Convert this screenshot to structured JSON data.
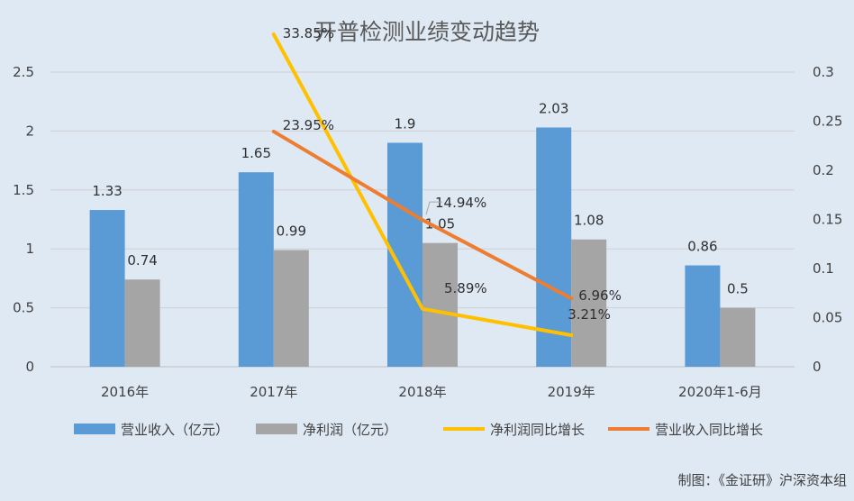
{
  "chart_data": {
    "type": "bar",
    "title": "开普检测业绩变动趋势",
    "categories": [
      "2016年",
      "2017年",
      "2018年",
      "2019年",
      "2020年1-6月"
    ],
    "y_left_ticks": [
      "0",
      "0.5",
      "1",
      "1.5",
      "2",
      "2.5"
    ],
    "y_right_ticks": [
      "0",
      "0.05",
      "0.1",
      "0.15",
      "0.2",
      "0.25",
      "0.3"
    ],
    "ylim_left": [
      0,
      2.5
    ],
    "ylim_right": [
      0,
      0.3
    ],
    "grid": true,
    "legend_position": "bottom",
    "series": [
      {
        "name": "营业收入（亿元）",
        "kind": "bar",
        "axis": "left",
        "color": "#5b9bd5",
        "values": [
          1.33,
          1.65,
          1.9,
          2.03,
          0.86
        ],
        "labels": [
          "1.33",
          "1.65",
          "1.9",
          "2.03",
          "0.86"
        ]
      },
      {
        "name": "净利润（亿元）",
        "kind": "bar",
        "axis": "left",
        "color": "#a5a5a5",
        "values": [
          0.74,
          0.99,
          1.05,
          1.08,
          0.5
        ],
        "labels": [
          "0.74",
          "0.99",
          "1.05",
          "1.08",
          "0.5"
        ]
      },
      {
        "name": "净利润同比增长",
        "kind": "line",
        "axis": "right",
        "color": "#ffc000",
        "values": [
          null,
          0.3385,
          0.0589,
          0.0321,
          null
        ],
        "labels": [
          null,
          "33.85%",
          "5.89%",
          "3.21%",
          null
        ]
      },
      {
        "name": "营业收入同比增长",
        "kind": "line",
        "axis": "right",
        "color": "#ed7d31",
        "values": [
          null,
          0.2395,
          0.1494,
          0.0696,
          null
        ],
        "labels": [
          null,
          "23.95%",
          "14.94%",
          "6.96%",
          null
        ]
      }
    ],
    "footer": "制图：《金证研》沪深资本组"
  }
}
